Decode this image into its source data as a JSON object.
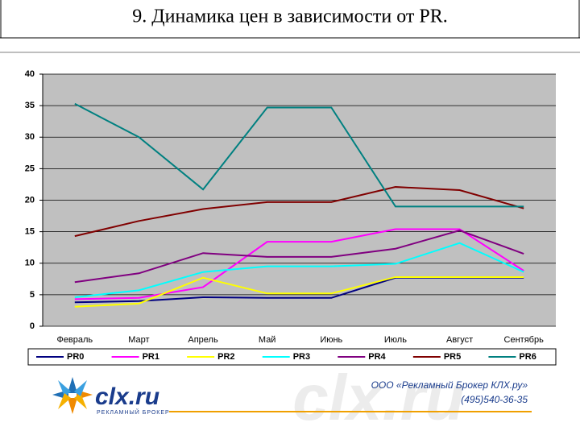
{
  "chart_data": {
    "type": "line",
    "title": "9. Динамика цен в зависимости от PR.",
    "categories": [
      "Февраль",
      "Март",
      "Апрель",
      "Май",
      "Июнь",
      "Июль",
      "Август",
      "Сентябрь"
    ],
    "series": [
      {
        "name": "PR0",
        "color": "#000080",
        "values": [
          3.8,
          4.0,
          4.6,
          4.5,
          4.5,
          7.7,
          7.7,
          7.7
        ]
      },
      {
        "name": "PR1",
        "color": "#ff00ff",
        "values": [
          4.3,
          4.5,
          6.2,
          13.4,
          13.4,
          15.4,
          15.4,
          8.8
        ]
      },
      {
        "name": "PR2",
        "color": "#ffff00",
        "values": [
          3.1,
          3.6,
          7.7,
          5.2,
          5.2,
          7.8,
          7.8,
          7.8
        ]
      },
      {
        "name": "PR3",
        "color": "#00ffff",
        "values": [
          4.6,
          5.7,
          8.6,
          9.5,
          9.5,
          9.9,
          13.2,
          8.6
        ]
      },
      {
        "name": "PR4",
        "color": "#800080",
        "values": [
          7.0,
          8.4,
          11.6,
          11.0,
          11.0,
          12.3,
          15.2,
          11.5
        ]
      },
      {
        "name": "PR5",
        "color": "#800000",
        "values": [
          14.3,
          16.7,
          18.6,
          19.7,
          19.7,
          22.1,
          21.6,
          18.7
        ]
      },
      {
        "name": "PR6",
        "color": "#008080",
        "values": [
          35.3,
          30.0,
          21.7,
          34.7,
          34.7,
          19.0,
          19.0,
          19.0
        ]
      }
    ],
    "ylim": [
      0,
      40
    ],
    "yticks": [
      0,
      5,
      10,
      15,
      20,
      25,
      30,
      35,
      40
    ],
    "grid": true,
    "legend": "bottom"
  },
  "footer": {
    "logo": "clx.ru",
    "logo_sub": "РЕКЛАМНЫЙ БРОКЕР",
    "company": "ООО «Рекламный Брокер КЛХ.ру»",
    "phone": "(495)540-36-35"
  }
}
